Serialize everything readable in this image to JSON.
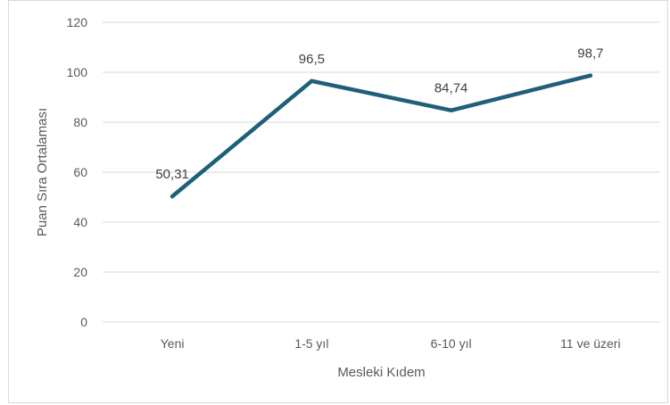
{
  "chart_data": {
    "type": "line",
    "categories": [
      "Yeni",
      "1-5 yıl",
      "6-10 yıl",
      "11 ve üzeri"
    ],
    "series": [
      {
        "values": [
          50.31,
          96.5,
          84.74,
          98.7
        ],
        "data_labels": [
          "50,31",
          "96,5",
          "84,74",
          "98,7"
        ],
        "color": "#1f5f7a"
      }
    ],
    "xlabel": "Mesleki Kıdem",
    "ylabel": "Puan Sıra Ortalaması",
    "ylim": [
      0,
      120
    ],
    "yticks": [
      0,
      20,
      40,
      60,
      80,
      100,
      120
    ],
    "ytick_labels": [
      "0",
      "20",
      "40",
      "60",
      "80",
      "100",
      "120"
    ],
    "grid": true,
    "gridline_color": "#d9d9d9",
    "legend": "none"
  }
}
